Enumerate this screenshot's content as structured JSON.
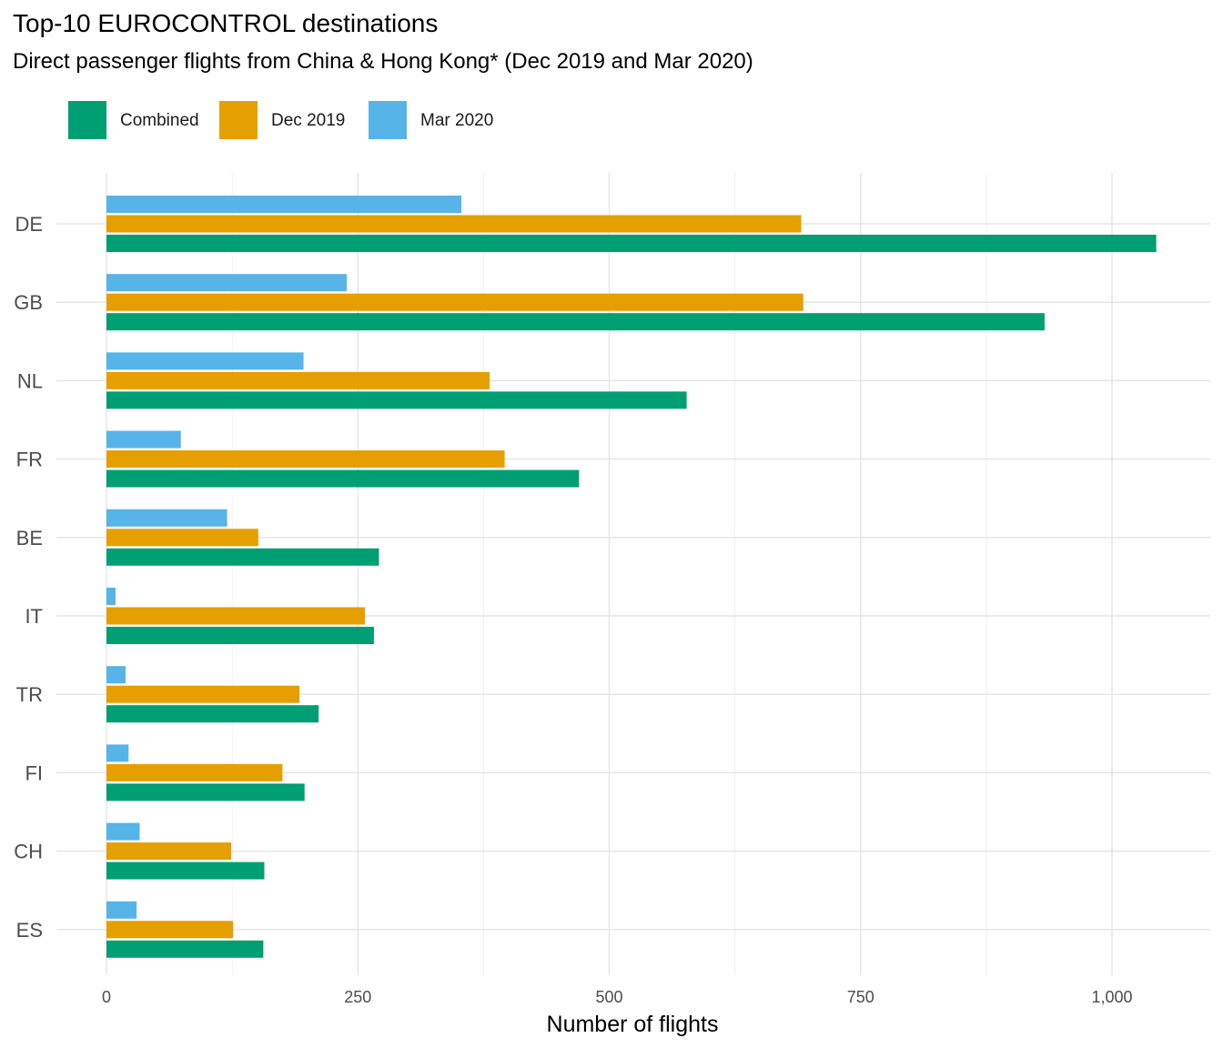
{
  "chart_data": {
    "type": "bar",
    "orientation": "horizontal",
    "title": "Top-10 EUROCONTROL destinations",
    "subtitle": "Direct passenger flights from China & Hong Kong*  (Dec 2019 and Mar 2020)",
    "xlabel": "Number of flights",
    "ylabel": "",
    "xlim": [
      0,
      1090
    ],
    "x_ticks": [
      0,
      250,
      500,
      750,
      1000
    ],
    "x_tick_labels": [
      "0",
      "250",
      "500",
      "750",
      "1,000"
    ],
    "categories": [
      "DE",
      "GB",
      "NL",
      "FR",
      "BE",
      "IT",
      "TR",
      "FI",
      "CH",
      "ES"
    ],
    "series": [
      {
        "name": "Combined",
        "color": "#009E73",
        "values": [
          1044,
          933,
          577,
          470,
          271,
          266,
          211,
          197,
          157,
          156
        ]
      },
      {
        "name": "Dec 2019",
        "color": "#E69F00",
        "values": [
          691,
          693,
          381,
          396,
          151,
          257,
          192,
          175,
          124,
          126
        ]
      },
      {
        "name": "Mar 2020",
        "color": "#56B4E9",
        "values": [
          353,
          239,
          196,
          74,
          120,
          9,
          19,
          22,
          33,
          30
        ]
      }
    ],
    "legend_position": "top-left",
    "grid": true
  }
}
